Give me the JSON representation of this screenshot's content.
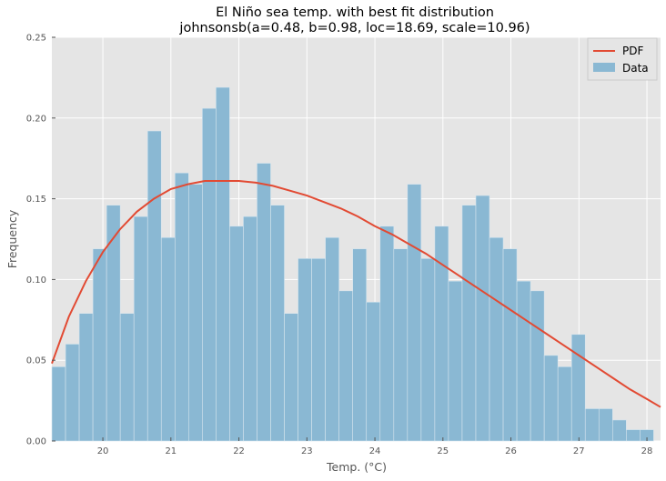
{
  "chart_data": {
    "type": "bar",
    "title": "El Niño sea temp. with best fit distribution",
    "subtitle": "johnsonsb(a=0.48, b=0.98, loc=18.69, scale=10.96)",
    "xlabel": "Temp. (°C)",
    "ylabel": "Frequency",
    "xlim": [
      19.25,
      28.2
    ],
    "ylim": [
      0,
      0.25
    ],
    "xticks": [
      20,
      21,
      22,
      23,
      24,
      25,
      26,
      27,
      28
    ],
    "xtick_labels": [
      "20",
      "21",
      "22",
      "23",
      "24",
      "25",
      "26",
      "27",
      "28"
    ],
    "yticks": [
      0,
      0.05,
      0.1,
      0.15,
      0.2,
      0.25
    ],
    "ytick_labels": [
      "0.00",
      "0.05",
      "0.10",
      "0.15",
      "0.20",
      "0.25"
    ],
    "grid": true,
    "legend_position": "top-right",
    "legend": [
      "PDF",
      "Data"
    ],
    "histogram": {
      "name": "Data",
      "color": "#8ab8d3",
      "bin_start": 19.25,
      "bin_width": 0.2011,
      "values": [
        0.046,
        0.06,
        0.079,
        0.119,
        0.146,
        0.079,
        0.139,
        0.192,
        0.126,
        0.166,
        0.159,
        0.206,
        0.219,
        0.133,
        0.139,
        0.172,
        0.146,
        0.079,
        0.113,
        0.113,
        0.126,
        0.093,
        0.119,
        0.086,
        0.133,
        0.119,
        0.159,
        0.113,
        0.133,
        0.099,
        0.146,
        0.152,
        0.126,
        0.119,
        0.099,
        0.093,
        0.053,
        0.046,
        0.066,
        0.02,
        0.02,
        0.013,
        0.007,
        0.007
      ]
    },
    "pdf": {
      "name": "PDF",
      "color": "#e24a33",
      "x": [
        19.25,
        19.5,
        19.75,
        20.0,
        20.25,
        20.5,
        20.75,
        21.0,
        21.25,
        21.5,
        21.75,
        22.0,
        22.25,
        22.5,
        22.75,
        23.0,
        23.25,
        23.5,
        23.75,
        24.0,
        24.25,
        24.5,
        24.75,
        25.0,
        25.25,
        25.5,
        25.75,
        26.0,
        26.25,
        26.5,
        26.75,
        27.0,
        27.25,
        27.5,
        27.75,
        28.0,
        28.2
      ],
      "y": [
        0.048,
        0.077,
        0.099,
        0.117,
        0.131,
        0.142,
        0.15,
        0.156,
        0.159,
        0.161,
        0.161,
        0.161,
        0.16,
        0.158,
        0.155,
        0.152,
        0.148,
        0.144,
        0.139,
        0.133,
        0.128,
        0.122,
        0.116,
        0.109,
        0.102,
        0.095,
        0.088,
        0.081,
        0.074,
        0.067,
        0.06,
        0.053,
        0.046,
        0.039,
        0.032,
        0.026,
        0.021
      ]
    }
  }
}
